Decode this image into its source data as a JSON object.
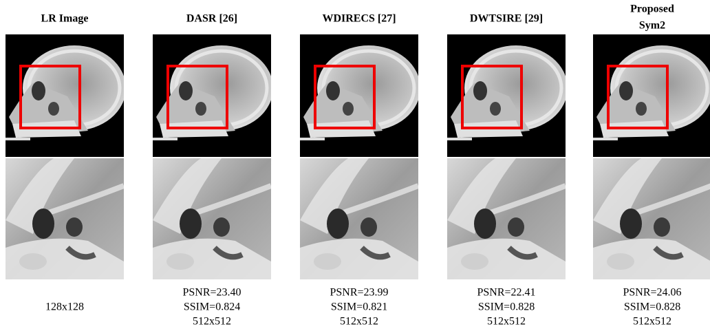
{
  "columns": [
    {
      "title_lines": [
        "LR Image"
      ],
      "caption_lines": [
        "128x128"
      ]
    },
    {
      "title_lines": [
        "DASR [26]"
      ],
      "caption_lines": [
        "PSNR=23.40",
        "SSIM=0.824",
        "512x512"
      ]
    },
    {
      "title_lines": [
        "WDIRECS [27]"
      ],
      "caption_lines": [
        "PSNR=23.99",
        "SSIM=0.821",
        "512x512"
      ]
    },
    {
      "title_lines": [
        "DWTSIRE [29]"
      ],
      "caption_lines": [
        "PSNR=22.41",
        "SSIM=0.828",
        "512x512"
      ]
    },
    {
      "title_lines": [
        "Proposed",
        "Sym2"
      ],
      "caption_lines": [
        "PSNR=24.06",
        "SSIM=0.828",
        "512x512"
      ]
    }
  ]
}
